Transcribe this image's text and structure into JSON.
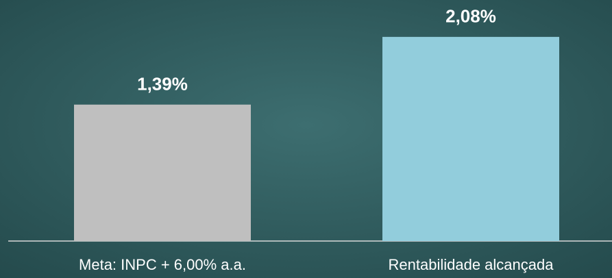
{
  "chart_data": {
    "type": "bar",
    "categories": [
      "Meta: INPC + 6,00% a.a.",
      "Rentabilidade alcançada"
    ],
    "values": [
      1.39,
      2.08
    ],
    "value_labels": [
      "1,39%",
      "2,08%"
    ],
    "colors": [
      "#bfbfbf",
      "#92cddc"
    ],
    "ylim": [
      0,
      2.4
    ]
  }
}
